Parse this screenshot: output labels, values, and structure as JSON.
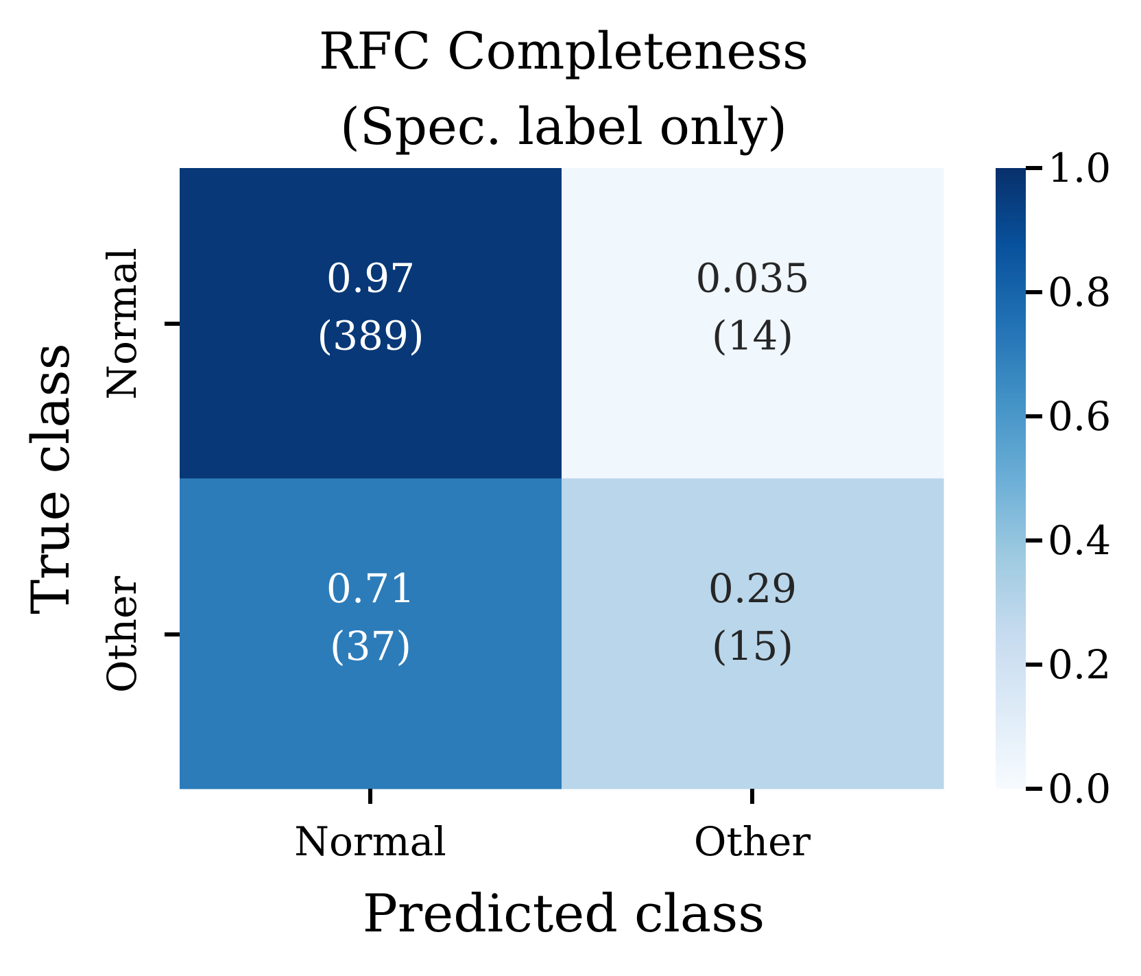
{
  "chart_data": {
    "type": "heatmap",
    "title_lines": [
      "RFC Completeness",
      "(Spec. label only)"
    ],
    "xlabel": "Predicted class",
    "ylabel": "True class",
    "x_categories": [
      "Normal",
      "Other"
    ],
    "y_categories": [
      "Normal",
      "Other"
    ],
    "values": [
      [
        0.97,
        0.035
      ],
      [
        0.71,
        0.29
      ]
    ],
    "counts": [
      [
        389,
        14
      ],
      [
        37,
        15
      ]
    ],
    "cell_labels": [
      [
        {
          "value": "0.97",
          "count": "(389)"
        },
        {
          "value": "0.035",
          "count": "(14)"
        }
      ],
      [
        {
          "value": "0.71",
          "count": "(37)"
        },
        {
          "value": "0.29",
          "count": "(15)"
        }
      ]
    ],
    "colorbar": {
      "colormap": "Blues",
      "range": [
        0.0,
        1.0
      ],
      "ticks": [
        "0.0",
        "0.2",
        "0.4",
        "0.6",
        "0.8",
        "1.0"
      ]
    },
    "colors": {
      "low": "#f7fbff",
      "high": "#08306b",
      "text_dark": "#262626",
      "text_light": "#ffffff"
    }
  }
}
